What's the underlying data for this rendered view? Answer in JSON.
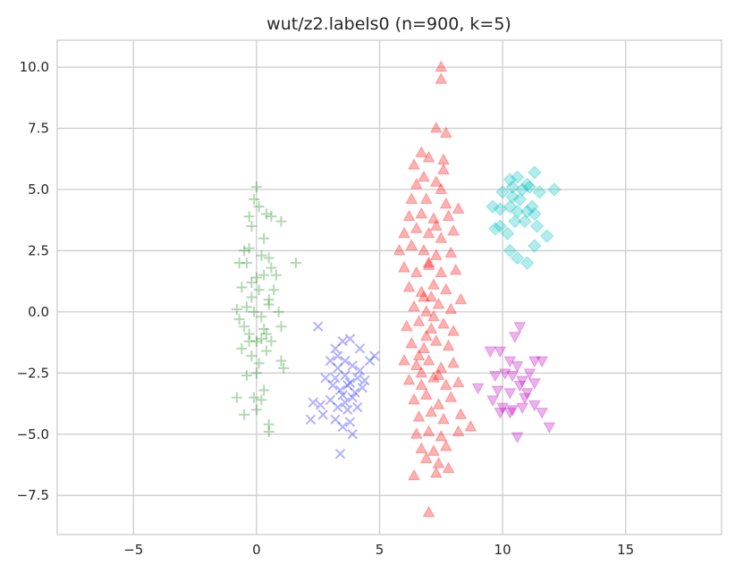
{
  "chart_data": {
    "type": "scatter",
    "title": "wut/z2.labels0 (n=900, k=5)",
    "xlabel": "",
    "ylabel": "",
    "xlim": [
      -8.1,
      18.9
    ],
    "ylim": [
      -9.1,
      11.1
    ],
    "x_ticks": [
      -5,
      0,
      5,
      10,
      15
    ],
    "y_ticks": [
      -7.5,
      -5.0,
      -2.5,
      0.0,
      2.5,
      5.0,
      7.5,
      10.0
    ],
    "x_tick_labels": [
      "−5",
      "0",
      "5",
      "10",
      "15"
    ],
    "y_tick_labels": [
      "−7.5",
      "−5.0",
      "−2.5",
      "0.0",
      "2.5",
      "5.0",
      "7.5",
      "10.0"
    ],
    "grid": true,
    "legend": "none",
    "series": [
      {
        "marker": "plus",
        "color": "#008000",
        "points": [
          [
            -0.4,
            2.0
          ],
          [
            -0.2,
            3.5
          ],
          [
            0.0,
            5.1
          ],
          [
            -0.1,
            4.6
          ],
          [
            0.4,
            4.0
          ],
          [
            0.6,
            3.9
          ],
          [
            -0.7,
            2.0
          ],
          [
            -0.5,
            2.5
          ],
          [
            -0.3,
            2.6
          ],
          [
            0.2,
            2.3
          ],
          [
            0.5,
            2.2
          ],
          [
            0.8,
            1.5
          ],
          [
            1.0,
            3.7
          ],
          [
            1.6,
            2.0
          ],
          [
            -0.6,
            1.0
          ],
          [
            -0.2,
            1.2
          ],
          [
            0.1,
            0.9
          ],
          [
            0.3,
            1.5
          ],
          [
            0.7,
            0.9
          ],
          [
            -0.4,
            0.2
          ],
          [
            -0.1,
            0.0
          ],
          [
            0.2,
            -0.2
          ],
          [
            0.5,
            0.3
          ],
          [
            0.9,
            0.0
          ],
          [
            -0.8,
            0.1
          ],
          [
            -0.5,
            -0.6
          ],
          [
            -0.3,
            -0.9
          ],
          [
            0.0,
            -1.2
          ],
          [
            0.3,
            -0.7
          ],
          [
            0.6,
            -1.2
          ],
          [
            1.0,
            -0.6
          ],
          [
            -0.6,
            -1.5
          ],
          [
            -0.2,
            -1.8
          ],
          [
            0.1,
            -2.1
          ],
          [
            0.4,
            -1.6
          ],
          [
            -0.4,
            -2.6
          ],
          [
            0.0,
            -2.5
          ],
          [
            0.3,
            -3.2
          ],
          [
            -0.1,
            -3.5
          ],
          [
            0.2,
            -3.6
          ],
          [
            -0.8,
            -3.5
          ],
          [
            -0.5,
            -4.2
          ],
          [
            0.0,
            -4.0
          ],
          [
            0.5,
            -4.6
          ],
          [
            0.5,
            -4.9
          ],
          [
            1.0,
            -2.0
          ],
          [
            1.1,
            -2.3
          ],
          [
            0.3,
            3.0
          ],
          [
            -0.3,
            3.9
          ],
          [
            0.1,
            4.3
          ],
          [
            0.5,
            0.5
          ],
          [
            -0.7,
            -0.3
          ],
          [
            0.4,
            -0.9
          ],
          [
            -0.2,
            0.6
          ],
          [
            0.6,
            1.8
          ],
          [
            0.0,
            1.4
          ],
          [
            0.2,
            -1.1
          ],
          [
            -0.3,
            -1.2
          ]
        ]
      },
      {
        "marker": "x",
        "color": "#0000ff",
        "points": [
          [
            2.5,
            -0.6
          ],
          [
            3.2,
            -1.5
          ],
          [
            3.5,
            -1.2
          ],
          [
            3.8,
            -1.1
          ],
          [
            4.2,
            -1.5
          ],
          [
            4.6,
            -2.0
          ],
          [
            4.8,
            -1.8
          ],
          [
            3.0,
            -2.0
          ],
          [
            3.3,
            -2.3
          ],
          [
            3.6,
            -2.6
          ],
          [
            3.9,
            -2.2
          ],
          [
            4.2,
            -2.4
          ],
          [
            4.4,
            -2.8
          ],
          [
            2.8,
            -2.7
          ],
          [
            3.1,
            -3.0
          ],
          [
            3.4,
            -3.2
          ],
          [
            3.7,
            -3.0
          ],
          [
            4.0,
            -3.3
          ],
          [
            4.3,
            -3.1
          ],
          [
            2.3,
            -3.7
          ],
          [
            2.6,
            -3.8
          ],
          [
            3.0,
            -3.6
          ],
          [
            3.3,
            -3.9
          ],
          [
            3.6,
            -3.7
          ],
          [
            3.9,
            -3.5
          ],
          [
            4.1,
            -3.9
          ],
          [
            2.2,
            -4.4
          ],
          [
            2.7,
            -4.2
          ],
          [
            3.2,
            -4.4
          ],
          [
            3.5,
            -4.7
          ],
          [
            3.8,
            -4.5
          ],
          [
            3.9,
            -5.0
          ],
          [
            3.4,
            -5.8
          ],
          [
            3.6,
            -2.0
          ],
          [
            3.5,
            -3.4
          ],
          [
            3.7,
            -4.0
          ],
          [
            3.2,
            -2.7
          ],
          [
            4.1,
            -2.7
          ],
          [
            3.3,
            -1.8
          ],
          [
            3.8,
            -2.9
          ]
        ]
      },
      {
        "marker": "triangle-up",
        "color": "#ff0000",
        "points": [
          [
            7.5,
            10.0
          ],
          [
            7.5,
            9.5
          ],
          [
            7.3,
            7.5
          ],
          [
            7.7,
            7.3
          ],
          [
            6.7,
            6.5
          ],
          [
            6.4,
            6.0
          ],
          [
            7.0,
            6.3
          ],
          [
            7.6,
            6.2
          ],
          [
            7.6,
            5.8
          ],
          [
            6.8,
            5.5
          ],
          [
            7.3,
            5.3
          ],
          [
            6.5,
            5.2
          ],
          [
            7.5,
            5.0
          ],
          [
            6.3,
            4.6
          ],
          [
            6.9,
            4.6
          ],
          [
            7.7,
            4.4
          ],
          [
            6.2,
            3.9
          ],
          [
            6.7,
            4.0
          ],
          [
            7.2,
            3.8
          ],
          [
            7.8,
            3.9
          ],
          [
            8.2,
            4.2
          ],
          [
            6.0,
            3.2
          ],
          [
            6.5,
            3.4
          ],
          [
            7.0,
            3.2
          ],
          [
            7.5,
            3.0
          ],
          [
            8.0,
            3.3
          ],
          [
            5.8,
            2.5
          ],
          [
            6.3,
            2.7
          ],
          [
            6.8,
            2.5
          ],
          [
            7.3,
            2.3
          ],
          [
            7.9,
            2.4
          ],
          [
            6.0,
            1.8
          ],
          [
            6.5,
            1.6
          ],
          [
            7.0,
            1.9
          ],
          [
            7.5,
            1.6
          ],
          [
            8.1,
            1.7
          ],
          [
            6.2,
            1.0
          ],
          [
            6.7,
            0.8
          ],
          [
            7.2,
            1.1
          ],
          [
            7.7,
            0.9
          ],
          [
            6.4,
            0.2
          ],
          [
            6.9,
            0.0
          ],
          [
            7.4,
            0.3
          ],
          [
            7.9,
            0.1
          ],
          [
            8.3,
            0.5
          ],
          [
            6.1,
            -0.6
          ],
          [
            6.6,
            -0.4
          ],
          [
            7.1,
            -0.7
          ],
          [
            7.6,
            -0.5
          ],
          [
            8.0,
            -0.8
          ],
          [
            6.3,
            -1.3
          ],
          [
            6.8,
            -1.5
          ],
          [
            7.3,
            -1.2
          ],
          [
            7.8,
            -1.4
          ],
          [
            6.0,
            -2.0
          ],
          [
            6.5,
            -2.2
          ],
          [
            7.0,
            -2.0
          ],
          [
            7.5,
            -2.3
          ],
          [
            8.0,
            -2.1
          ],
          [
            6.2,
            -2.8
          ],
          [
            6.7,
            -3.0
          ],
          [
            7.2,
            -2.7
          ],
          [
            7.7,
            -3.0
          ],
          [
            8.2,
            -2.9
          ],
          [
            6.4,
            -3.6
          ],
          [
            6.9,
            -3.4
          ],
          [
            7.4,
            -3.8
          ],
          [
            7.9,
            -3.5
          ],
          [
            6.6,
            -4.3
          ],
          [
            7.1,
            -4.1
          ],
          [
            7.6,
            -4.4
          ],
          [
            8.3,
            -4.2
          ],
          [
            8.7,
            -4.7
          ],
          [
            6.5,
            -5.0
          ],
          [
            7.0,
            -4.9
          ],
          [
            7.5,
            -5.1
          ],
          [
            6.7,
            -5.6
          ],
          [
            7.2,
            -5.7
          ],
          [
            7.7,
            -5.5
          ],
          [
            8.2,
            -4.9
          ],
          [
            6.9,
            -6.0
          ],
          [
            7.4,
            -6.2
          ],
          [
            7.8,
            -6.4
          ],
          [
            6.4,
            -6.7
          ],
          [
            7.3,
            -6.6
          ],
          [
            7.0,
            -8.2
          ],
          [
            6.9,
            -1.0
          ],
          [
            7.2,
            -0.2
          ],
          [
            7.0,
            2.0
          ],
          [
            6.8,
            0.6
          ],
          [
            7.4,
            -2.6
          ],
          [
            6.6,
            -1.8
          ],
          [
            7.1,
            0.6
          ],
          [
            7.3,
            3.5
          ],
          [
            6.7,
            -2.5
          ]
        ]
      },
      {
        "marker": "diamond",
        "color": "#00bfbf",
        "points": [
          [
            10.3,
            5.4
          ],
          [
            10.6,
            5.5
          ],
          [
            11.0,
            5.2
          ],
          [
            11.3,
            5.7
          ],
          [
            10.8,
            5.0
          ],
          [
            11.5,
            4.9
          ],
          [
            12.1,
            5.0
          ],
          [
            10.0,
            4.9
          ],
          [
            10.4,
            4.7
          ],
          [
            9.9,
            4.2
          ],
          [
            10.3,
            4.3
          ],
          [
            10.6,
            4.1
          ],
          [
            11.0,
            4.1
          ],
          [
            11.3,
            4.0
          ],
          [
            10.9,
            3.7
          ],
          [
            9.6,
            4.3
          ],
          [
            9.9,
            3.5
          ],
          [
            10.2,
            3.2
          ],
          [
            10.5,
            3.7
          ],
          [
            11.4,
            3.5
          ],
          [
            11.8,
            3.1
          ],
          [
            9.7,
            3.4
          ],
          [
            10.3,
            2.5
          ],
          [
            10.6,
            2.2
          ],
          [
            11.0,
            2.0
          ],
          [
            11.3,
            2.7
          ],
          [
            10.7,
            4.6
          ],
          [
            11.1,
            5.1
          ],
          [
            10.4,
            5.1
          ],
          [
            11.2,
            4.3
          ]
        ]
      },
      {
        "marker": "triangle-down",
        "color": "#bf00bf",
        "points": [
          [
            10.7,
            -0.6
          ],
          [
            10.5,
            -1.0
          ],
          [
            9.5,
            -1.6
          ],
          [
            9.9,
            -1.6
          ],
          [
            10.3,
            -2.0
          ],
          [
            10.6,
            -2.2
          ],
          [
            11.3,
            -2.0
          ],
          [
            11.6,
            -2.0
          ],
          [
            9.7,
            -2.6
          ],
          [
            10.1,
            -2.5
          ],
          [
            10.4,
            -2.6
          ],
          [
            10.8,
            -2.8
          ],
          [
            11.1,
            -2.5
          ],
          [
            11.3,
            -2.9
          ],
          [
            9.0,
            -3.1
          ],
          [
            9.8,
            -3.2
          ],
          [
            10.3,
            -3.3
          ],
          [
            10.7,
            -3.0
          ],
          [
            11.0,
            -3.3
          ],
          [
            9.6,
            -3.6
          ],
          [
            10.0,
            -3.9
          ],
          [
            10.4,
            -4.0
          ],
          [
            10.8,
            -3.9
          ],
          [
            11.3,
            -3.8
          ],
          [
            11.6,
            -4.1
          ],
          [
            9.9,
            -4.1
          ],
          [
            10.3,
            -4.1
          ],
          [
            11.9,
            -4.7
          ],
          [
            10.6,
            -5.1
          ],
          [
            10.9,
            -3.5
          ]
        ]
      }
    ]
  }
}
